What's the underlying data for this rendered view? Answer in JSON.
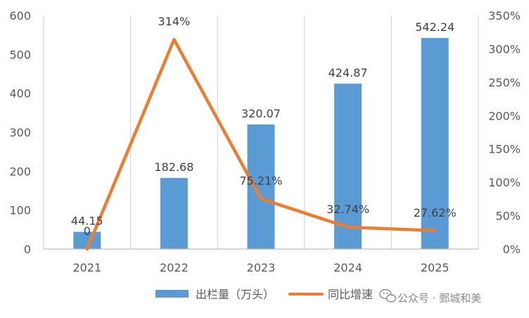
{
  "chart_data": {
    "type": "bar+line",
    "categories": [
      "2021",
      "2022",
      "2023",
      "2024",
      "2025"
    ],
    "series": [
      {
        "name": "出栏量（万头）",
        "type": "bar",
        "axis": "left",
        "values": [
          44.15,
          182.68,
          320.07,
          424.87,
          542.24
        ],
        "labels": [
          "44.15",
          "182.68",
          "320.07",
          "424.87",
          "542.24"
        ],
        "color": "#5B9BD5"
      },
      {
        "name": "同比增速",
        "type": "line",
        "axis": "right",
        "values": [
          0,
          314,
          75.21,
          32.74,
          27.62
        ],
        "labels": [
          "0",
          "314%",
          "75.21%",
          "32.74%",
          "27.62%"
        ],
        "color": "#ED7D31"
      }
    ],
    "y_left": {
      "min": 0,
      "max": 600,
      "ticks": [
        "0",
        "100",
        "200",
        "300",
        "400",
        "500",
        "600"
      ]
    },
    "y_right": {
      "min": 0,
      "max": 350,
      "unit": "%",
      "ticks": [
        "0%",
        "50%",
        "100%",
        "150%",
        "200%",
        "250%",
        "300%",
        "350%"
      ]
    },
    "grid": "vertical",
    "legend": "bottom"
  },
  "watermark": {
    "icon": "wechat-icon",
    "text": "公众号 · 鄄城和美"
  }
}
